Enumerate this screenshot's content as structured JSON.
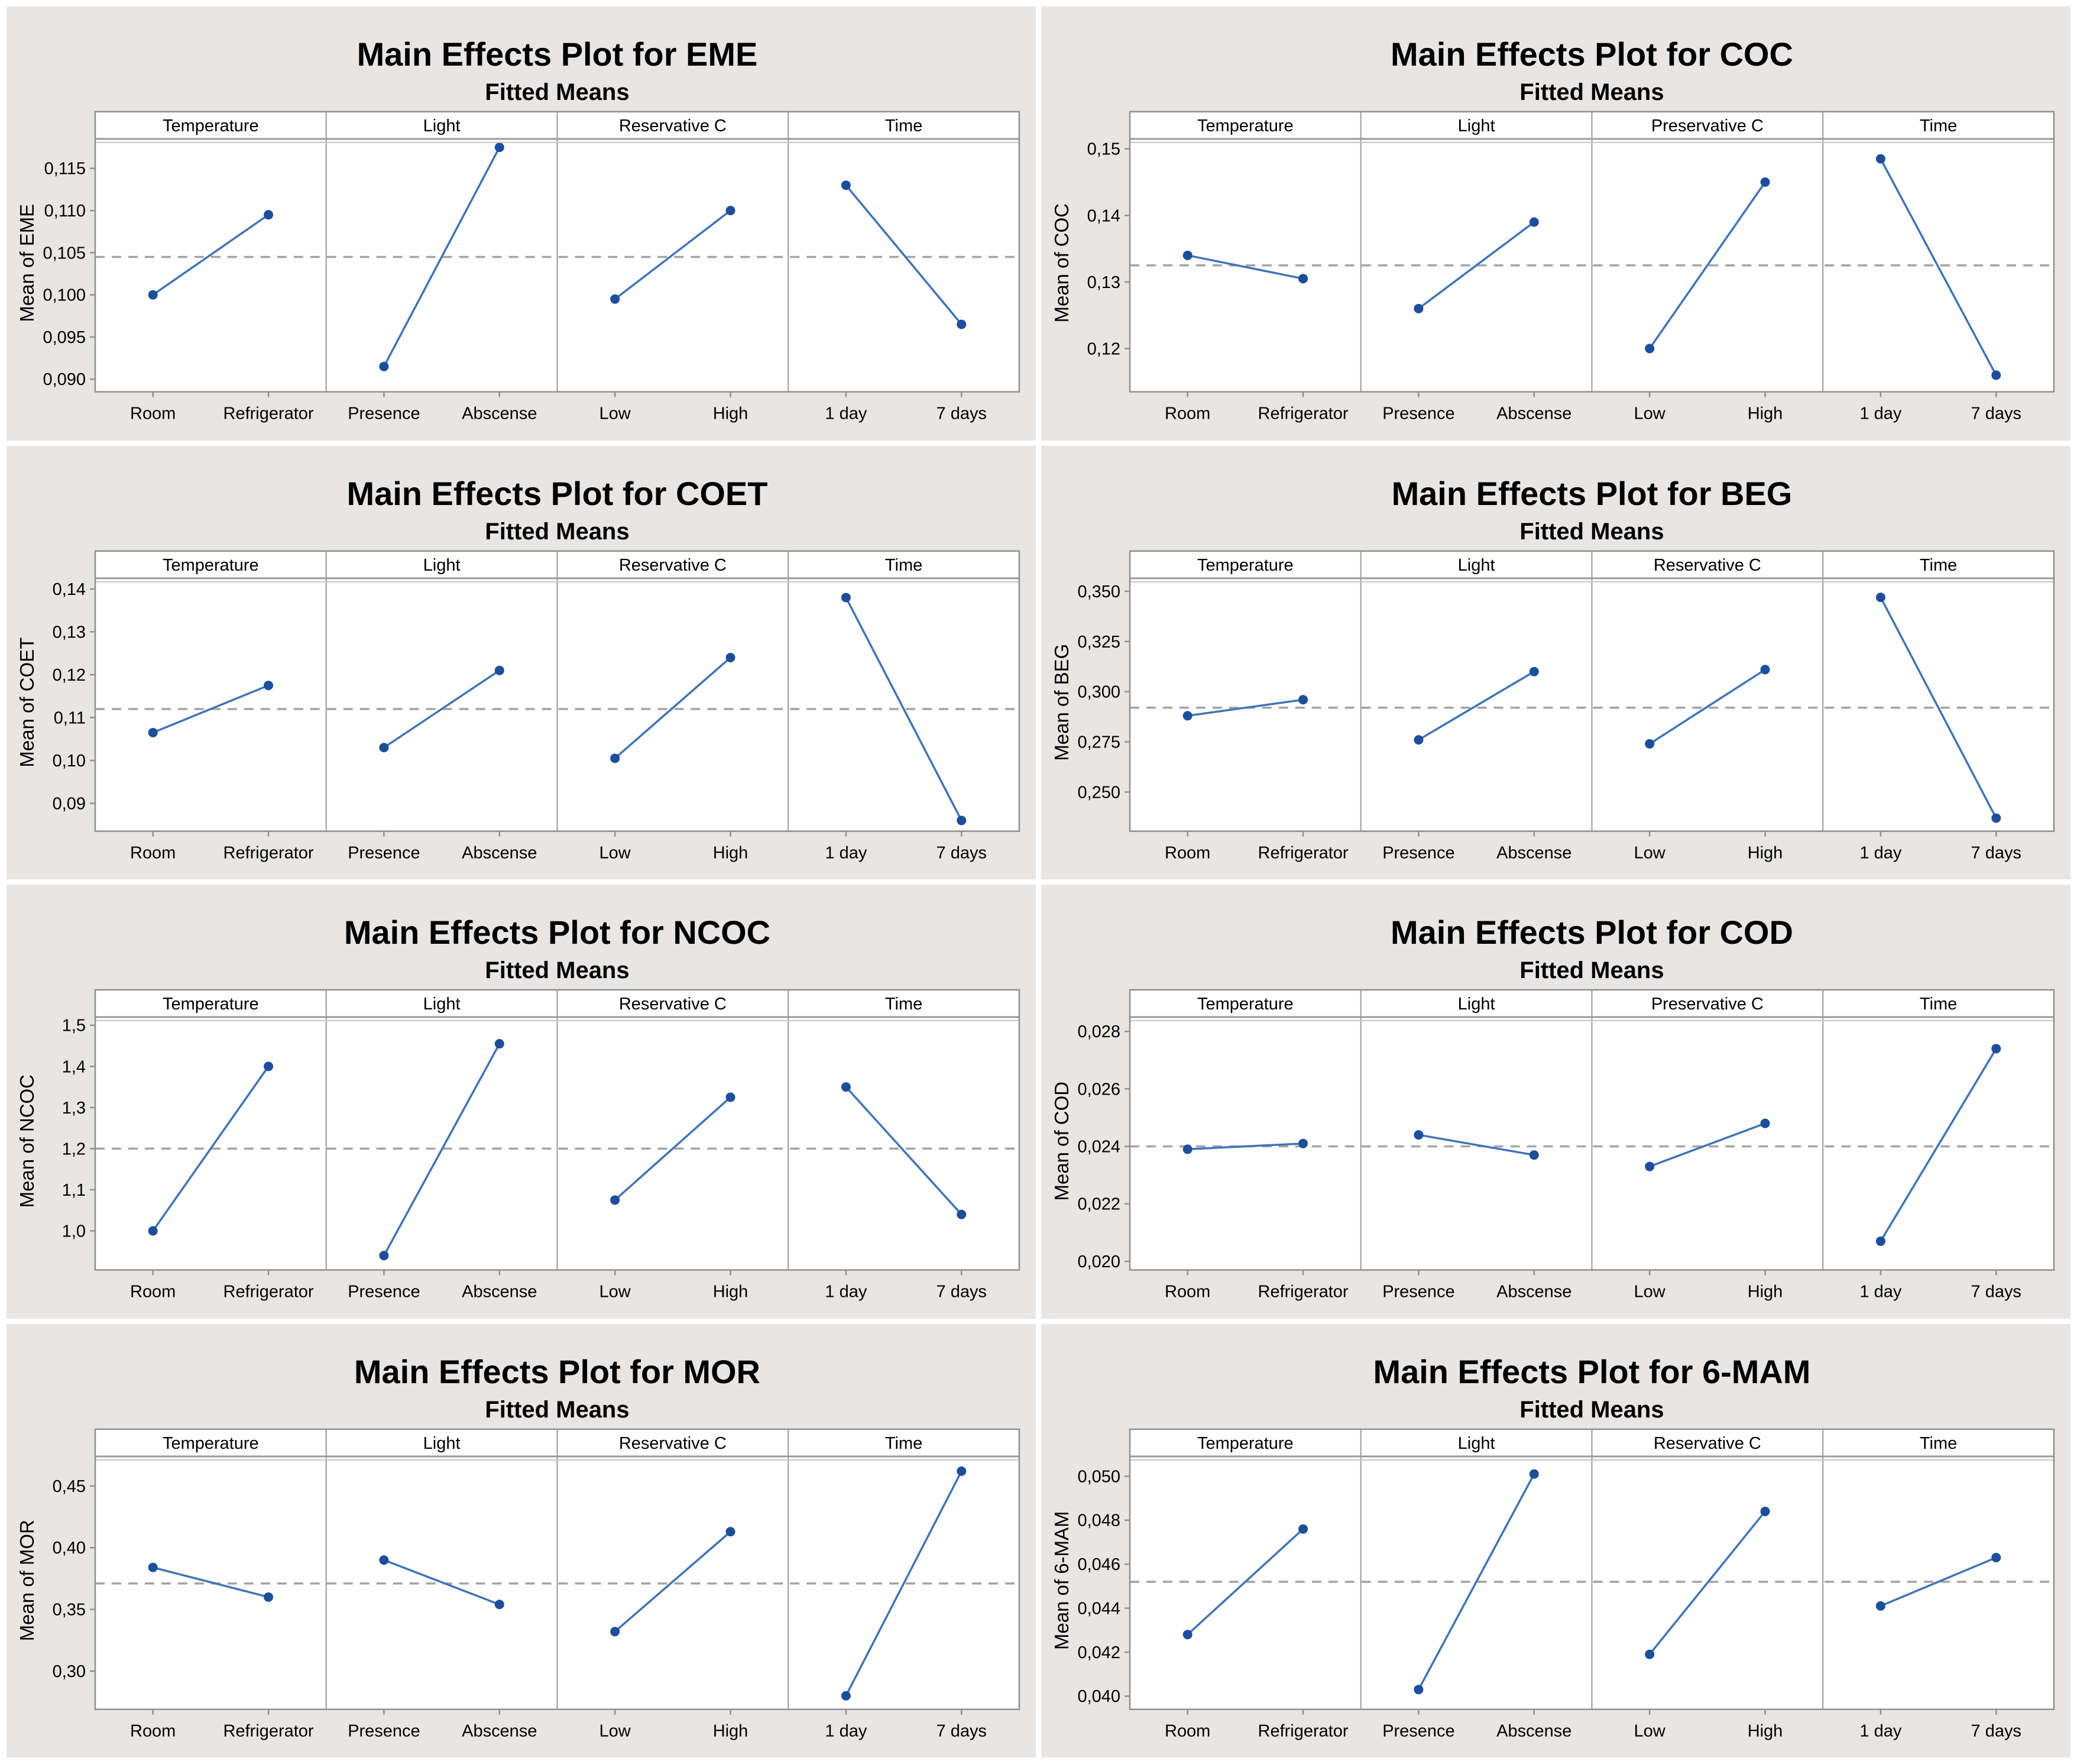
{
  "colors": {
    "page_background": "#ffffff",
    "cell_background": "#e8e6e4",
    "plot_background": "#ffffff",
    "frame": "#8f8f8f",
    "panel_separator": "#9a9a9a",
    "dashed_mean_line": "#a3a3a3",
    "series_line": "#3f74b8",
    "marker": "#1c4e9d",
    "text": "#000000"
  },
  "chart_data": [
    {
      "type": "line",
      "title": "Main Effects Plot for EME",
      "subtitle": "Fitted Means",
      "ylabel": "Mean of EME",
      "grand_mean": 0.1045,
      "ylim": [
        0.0885,
        0.1185
      ],
      "grid": false,
      "yticks": [
        {
          "v": 0.09,
          "label": "0,090"
        },
        {
          "v": 0.095,
          "label": "0,095"
        },
        {
          "v": 0.1,
          "label": "0,100"
        },
        {
          "v": 0.105,
          "label": "0,105"
        },
        {
          "v": 0.11,
          "label": "0,110"
        },
        {
          "v": 0.115,
          "label": "0,115"
        }
      ],
      "panels": [
        {
          "header": "Temperature",
          "categories": [
            "Room",
            "Refrigerator"
          ],
          "values": [
            0.1,
            0.1095
          ]
        },
        {
          "header": "Light",
          "categories": [
            "Presence",
            "Abscense"
          ],
          "values": [
            0.0915,
            0.1175
          ]
        },
        {
          "header": "Reservative C",
          "categories": [
            "Low",
            "High"
          ],
          "values": [
            0.0995,
            0.11
          ]
        },
        {
          "header": "Time",
          "categories": [
            "1 day",
            "7 days"
          ],
          "values": [
            0.113,
            0.0965
          ]
        }
      ]
    },
    {
      "type": "line",
      "title": "Main Effects Plot for COC",
      "subtitle": "Fitted Means",
      "ylabel": "Mean of COC",
      "grand_mean": 0.1325,
      "ylim": [
        0.1135,
        0.1515
      ],
      "grid": false,
      "yticks": [
        {
          "v": 0.12,
          "label": "0,12"
        },
        {
          "v": 0.13,
          "label": "0,13"
        },
        {
          "v": 0.14,
          "label": "0,14"
        },
        {
          "v": 0.15,
          "label": "0,15"
        }
      ],
      "panels": [
        {
          "header": "Temperature",
          "categories": [
            "Room",
            "Refrigerator"
          ],
          "values": [
            0.134,
            0.1305
          ]
        },
        {
          "header": "Light",
          "categories": [
            "Presence",
            "Abscense"
          ],
          "values": [
            0.126,
            0.139
          ]
        },
        {
          "header": "Preservative C",
          "categories": [
            "Low",
            "High"
          ],
          "values": [
            0.12,
            0.145
          ]
        },
        {
          "header": "Time",
          "categories": [
            "1 day",
            "7 days"
          ],
          "values": [
            0.1485,
            0.116
          ]
        }
      ]
    },
    {
      "type": "line",
      "title": "Main Effects Plot for COET",
      "subtitle": "Fitted Means",
      "ylabel": "Mean of COET",
      "grand_mean": 0.112,
      "ylim": [
        0.0835,
        0.1425
      ],
      "grid": false,
      "yticks": [
        {
          "v": 0.09,
          "label": "0,09"
        },
        {
          "v": 0.1,
          "label": "0,10"
        },
        {
          "v": 0.11,
          "label": "0,11"
        },
        {
          "v": 0.12,
          "label": "0,12"
        },
        {
          "v": 0.13,
          "label": "0,13"
        },
        {
          "v": 0.14,
          "label": "0,14"
        }
      ],
      "panels": [
        {
          "header": "Temperature",
          "categories": [
            "Room",
            "Refrigerator"
          ],
          "values": [
            0.1065,
            0.1175
          ]
        },
        {
          "header": "Light",
          "categories": [
            "Presence",
            "Abscense"
          ],
          "values": [
            0.103,
            0.121
          ]
        },
        {
          "header": "Reservative C",
          "categories": [
            "Low",
            "High"
          ],
          "values": [
            0.1005,
            0.124
          ]
        },
        {
          "header": "Time",
          "categories": [
            "1 day",
            "7 days"
          ],
          "values": [
            0.138,
            0.086
          ]
        }
      ]
    },
    {
      "type": "line",
      "title": "Main Effects Plot for BEG",
      "subtitle": "Fitted Means",
      "ylabel": "Mean of BEG",
      "grand_mean": 0.292,
      "ylim": [
        0.2305,
        0.3565
      ],
      "grid": false,
      "yticks": [
        {
          "v": 0.25,
          "label": "0,250"
        },
        {
          "v": 0.275,
          "label": "0,275"
        },
        {
          "v": 0.3,
          "label": "0,300"
        },
        {
          "v": 0.325,
          "label": "0,325"
        },
        {
          "v": 0.35,
          "label": "0,350"
        }
      ],
      "panels": [
        {
          "header": "Temperature",
          "categories": [
            "Room",
            "Refrigerator"
          ],
          "values": [
            0.288,
            0.296
          ]
        },
        {
          "header": "Light",
          "categories": [
            "Presence",
            "Abscense"
          ],
          "values": [
            0.276,
            0.31
          ]
        },
        {
          "header": "Reservative C",
          "categories": [
            "Low",
            "High"
          ],
          "values": [
            0.274,
            0.311
          ]
        },
        {
          "header": "Time",
          "categories": [
            "1 day",
            "7 days"
          ],
          "values": [
            0.347,
            0.237
          ]
        }
      ]
    },
    {
      "type": "line",
      "title": "Main Effects Plot for NCOC",
      "subtitle": "Fitted Means",
      "ylabel": "Mean of NCOC",
      "grand_mean": 1.2,
      "ylim": [
        0.905,
        1.52
      ],
      "grid": false,
      "yticks": [
        {
          "v": 1.0,
          "label": "1,0"
        },
        {
          "v": 1.1,
          "label": "1,1"
        },
        {
          "v": 1.2,
          "label": "1,2"
        },
        {
          "v": 1.3,
          "label": "1,3"
        },
        {
          "v": 1.4,
          "label": "1,4"
        },
        {
          "v": 1.5,
          "label": "1,5"
        }
      ],
      "panels": [
        {
          "header": "Temperature",
          "categories": [
            "Room",
            "Refrigerator"
          ],
          "values": [
            1.0,
            1.4
          ]
        },
        {
          "header": "Light",
          "categories": [
            "Presence",
            "Abscense"
          ],
          "values": [
            0.94,
            1.455
          ]
        },
        {
          "header": "Reservative C",
          "categories": [
            "Low",
            "High"
          ],
          "values": [
            1.075,
            1.325
          ]
        },
        {
          "header": "Time",
          "categories": [
            "1 day",
            "7 days"
          ],
          "values": [
            1.35,
            1.04
          ]
        }
      ]
    },
    {
      "type": "line",
      "title": "Main Effects Plot for COD",
      "subtitle": "Fitted Means",
      "ylabel": "Mean of COD",
      "grand_mean": 0.024,
      "ylim": [
        0.0197,
        0.0285
      ],
      "grid": false,
      "yticks": [
        {
          "v": 0.02,
          "label": "0,020"
        },
        {
          "v": 0.022,
          "label": "0,022"
        },
        {
          "v": 0.024,
          "label": "0,024"
        },
        {
          "v": 0.026,
          "label": "0,026"
        },
        {
          "v": 0.028,
          "label": "0,028"
        }
      ],
      "panels": [
        {
          "header": "Temperature",
          "categories": [
            "Room",
            "Refrigerator"
          ],
          "values": [
            0.0239,
            0.0241
          ]
        },
        {
          "header": "Light",
          "categories": [
            "Presence",
            "Abscense"
          ],
          "values": [
            0.0244,
            0.0237
          ]
        },
        {
          "header": "Preservative C",
          "categories": [
            "Low",
            "High"
          ],
          "values": [
            0.0233,
            0.0248
          ]
        },
        {
          "header": "Time",
          "categories": [
            "1 day",
            "7 days"
          ],
          "values": [
            0.0207,
            0.0274
          ]
        }
      ]
    },
    {
      "type": "line",
      "title": "Main Effects Plot for MOR",
      "subtitle": "Fitted Means",
      "ylabel": "Mean of MOR",
      "grand_mean": 0.371,
      "ylim": [
        0.269,
        0.474
      ],
      "grid": false,
      "yticks": [
        {
          "v": 0.3,
          "label": "0,30"
        },
        {
          "v": 0.35,
          "label": "0,35"
        },
        {
          "v": 0.4,
          "label": "0,40"
        },
        {
          "v": 0.45,
          "label": "0,45"
        }
      ],
      "panels": [
        {
          "header": "Temperature",
          "categories": [
            "Room",
            "Refrigerator"
          ],
          "values": [
            0.384,
            0.36
          ]
        },
        {
          "header": "Light",
          "categories": [
            "Presence",
            "Abscense"
          ],
          "values": [
            0.39,
            0.354
          ]
        },
        {
          "header": "Reservative C",
          "categories": [
            "Low",
            "High"
          ],
          "values": [
            0.332,
            0.413
          ]
        },
        {
          "header": "Time",
          "categories": [
            "1 day",
            "7 days"
          ],
          "values": [
            0.28,
            0.462
          ]
        }
      ]
    },
    {
      "type": "line",
      "title": "Main Effects Plot for 6-MAM",
      "subtitle": "Fitted Means",
      "ylabel": "Mean of 6-MAM",
      "grand_mean": 0.0452,
      "ylim": [
        0.0394,
        0.0509
      ],
      "grid": false,
      "yticks": [
        {
          "v": 0.04,
          "label": "0,040"
        },
        {
          "v": 0.042,
          "label": "0,042"
        },
        {
          "v": 0.044,
          "label": "0,044"
        },
        {
          "v": 0.046,
          "label": "0,046"
        },
        {
          "v": 0.048,
          "label": "0,048"
        },
        {
          "v": 0.05,
          "label": "0,050"
        }
      ],
      "panels": [
        {
          "header": "Temperature",
          "categories": [
            "Room",
            "Refrigerator"
          ],
          "values": [
            0.0428,
            0.0476
          ]
        },
        {
          "header": "Light",
          "categories": [
            "Presence",
            "Abscense"
          ],
          "values": [
            0.0403,
            0.0501
          ]
        },
        {
          "header": "Reservative C",
          "categories": [
            "Low",
            "High"
          ],
          "values": [
            0.0419,
            0.0484
          ]
        },
        {
          "header": "Time",
          "categories": [
            "1 day",
            "7 days"
          ],
          "values": [
            0.0441,
            0.0463
          ]
        }
      ]
    }
  ]
}
